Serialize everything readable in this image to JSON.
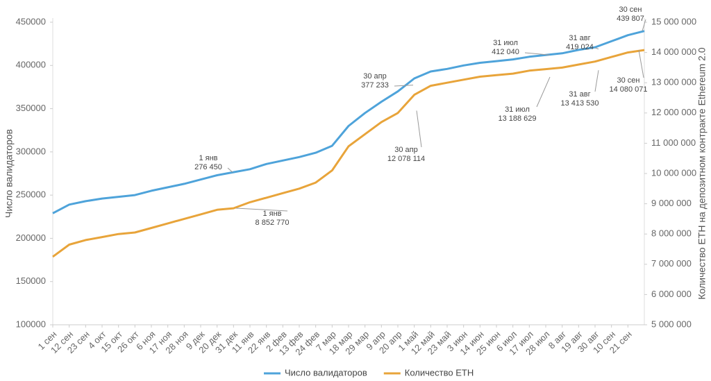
{
  "chart_data": {
    "type": "line",
    "y_label": "Число валидаторов",
    "y2_label": "Количество ETH на депозитном контракте Ethereum 2.0",
    "categories": [
      "1 сен",
      "12 сен",
      "23 сен",
      "4 окт",
      "15 окт",
      "26 окт",
      "6 ноя",
      "17 ноя",
      "28 ноя",
      "9 дек",
      "20 дек",
      "31 дек",
      "11 янв",
      "22 янв",
      "2 фев",
      "13 фев",
      "24 фев",
      "7 мар",
      "18 мар",
      "29 мар",
      "9 апр",
      "20 апр",
      "1 май",
      "12 май",
      "23 май",
      "3 июн",
      "14 июн",
      "25 июн",
      "6 июл",
      "17 июл",
      "28 июл",
      "8 авг",
      "19 авг",
      "30 авг",
      "10 сен",
      "21 сен",
      null
    ],
    "series": [
      {
        "name": "Число валидаторов",
        "color": "#4ea3da",
        "axis": "y",
        "values": [
          229000,
          239000,
          243000,
          246000,
          248000,
          250000,
          255000,
          259000,
          263000,
          268000,
          273000,
          276500,
          280000,
          286000,
          290000,
          294000,
          299000,
          307000,
          330000,
          345000,
          358000,
          370000,
          385000,
          393000,
          396000,
          400000,
          403000,
          405000,
          407000,
          410000,
          412000,
          414000,
          418000,
          421000,
          428000,
          435000,
          439807
        ]
      },
      {
        "name": "Количество ETH",
        "color": "#e8a43a",
        "axis": "y2",
        "values": [
          7250000,
          7650000,
          7800000,
          7900000,
          8000000,
          8050000,
          8200000,
          8350000,
          8500000,
          8650000,
          8800000,
          8850000,
          9050000,
          9200000,
          9350000,
          9500000,
          9700000,
          10100000,
          10900000,
          11300000,
          11700000,
          12000000,
          12600000,
          12900000,
          13000000,
          13100000,
          13200000,
          13250000,
          13300000,
          13400000,
          13450000,
          13500000,
          13600000,
          13700000,
          13850000,
          14000000,
          14080071
        ]
      }
    ],
    "ylim": [
      100000,
      450000
    ],
    "yticks": [
      100000,
      150000,
      200000,
      250000,
      300000,
      350000,
      400000,
      450000
    ],
    "y2lim": [
      5000000,
      15000000
    ],
    "y2ticks": [
      {
        "value": 5000000,
        "label": "5 000 000"
      },
      {
        "value": 6000000,
        "label": "6 000 000"
      },
      {
        "value": 7000000,
        "label": "7 000 000"
      },
      {
        "value": 8000000,
        "label": "8 000 000"
      },
      {
        "value": 9000000,
        "label": "9 000 000"
      },
      {
        "value": 10000000,
        "label": "10 000 000"
      },
      {
        "value": 11000000,
        "label": "11 000 000"
      },
      {
        "value": 12000000,
        "label": "12 000 000"
      },
      {
        "value": 13000000,
        "label": "13 000 000"
      },
      {
        "value": 14000000,
        "label": "14 000 000"
      },
      {
        "value": 15000000,
        "label": "15 000 000"
      }
    ],
    "grid": false,
    "legend": "bottom",
    "annotations": [
      {
        "date": "1 янв",
        "value": 276450,
        "label": "276 450",
        "axis": "y"
      },
      {
        "date": "30 апр",
        "value": 377233,
        "label": "377 233",
        "axis": "y"
      },
      {
        "date": "31 июл",
        "value": 412040,
        "label": "412 040",
        "axis": "y"
      },
      {
        "date": "31 авг",
        "value": 419024,
        "label": "419 024",
        "axis": "y"
      },
      {
        "date": "30 сен",
        "value": 439807,
        "label": "439 807",
        "axis": "y"
      },
      {
        "date": "1 янв",
        "value": 8852770,
        "label": "8 852 770",
        "axis": "y2"
      },
      {
        "date": "30 апр",
        "value": 12078114,
        "label": "12 078 114",
        "axis": "y2"
      },
      {
        "date": "31 июл",
        "value": 13188629,
        "label": "13 188 629",
        "axis": "y2"
      },
      {
        "date": "31 авг",
        "value": 13413530,
        "label": "13 413 530",
        "axis": "y2"
      },
      {
        "date": "30 сен",
        "value": 14080071,
        "label": "14 080 071",
        "axis": "y2"
      }
    ]
  }
}
